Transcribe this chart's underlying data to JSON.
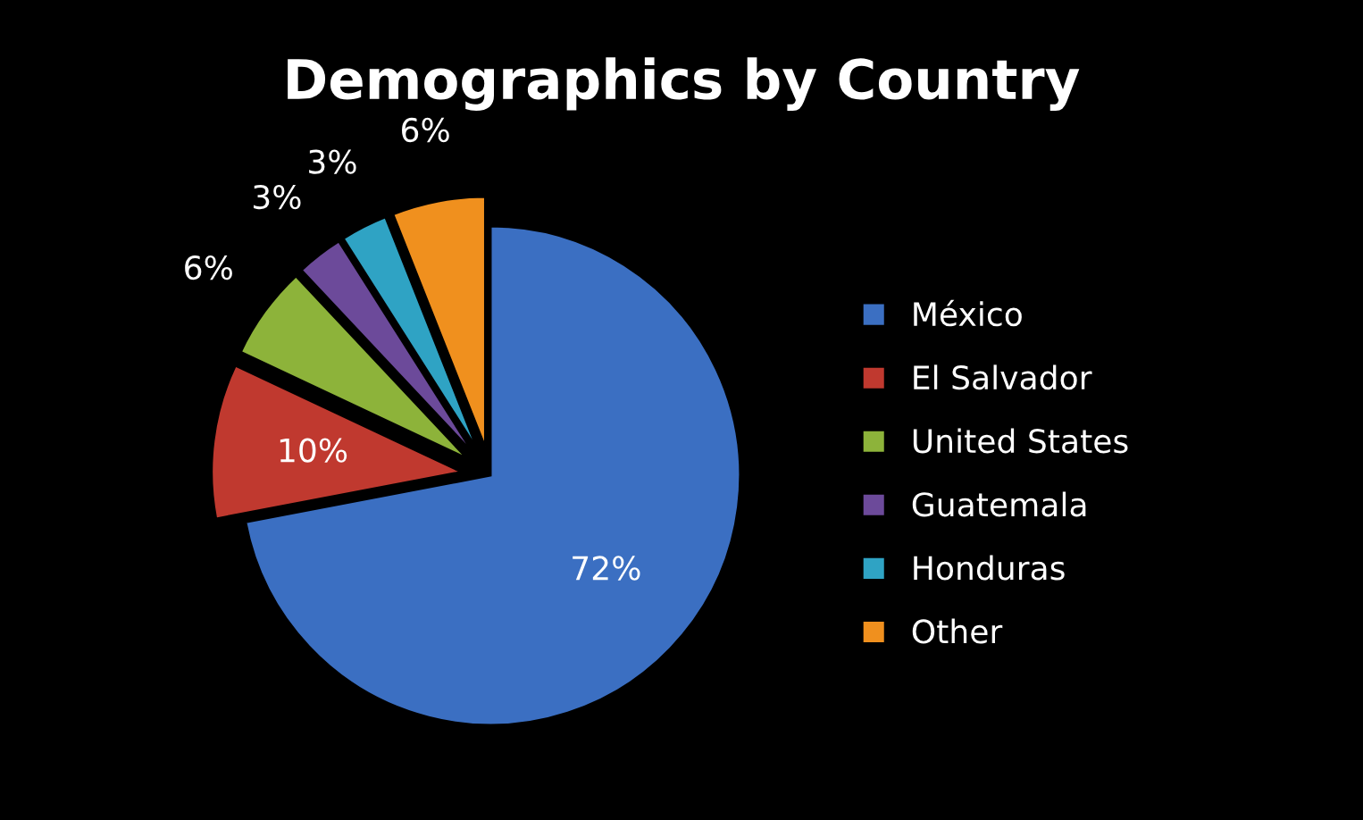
{
  "chart_data": {
    "type": "pie",
    "title": "Demographics by Country",
    "categories": [
      "México",
      "El Salvador",
      "United States",
      "Guatemala",
      "Honduras",
      "Other"
    ],
    "values": [
      72,
      10,
      6,
      3,
      3,
      6
    ],
    "value_labels": [
      "72%",
      "10%",
      "6%",
      "3%",
      "3%",
      "6%"
    ],
    "colors": [
      "#3b6fc2",
      "#c0392f",
      "#8db33a",
      "#6c4a9a",
      "#2fa3c4",
      "#f0901e"
    ],
    "legend": "right"
  }
}
